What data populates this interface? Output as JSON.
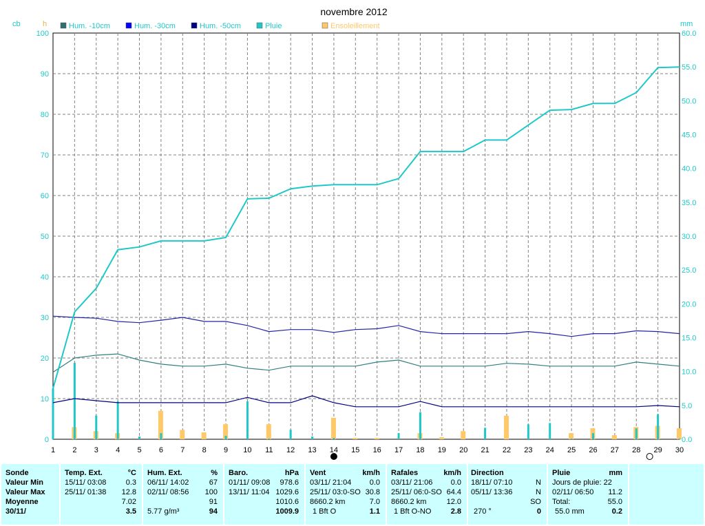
{
  "chart_data": {
    "type": "line",
    "title": "novembre 2012",
    "left_units": [
      "cb",
      "h"
    ],
    "right_unit": "mm",
    "y_left_ticks": [
      0,
      10,
      20,
      30,
      40,
      50,
      60,
      70,
      80,
      90,
      100
    ],
    "y_right_ticks": [
      "0.0",
      "5.0",
      "10.0",
      "15.0",
      "20.0",
      "25.0",
      "30.0",
      "35.0",
      "40.0",
      "45.0",
      "50.0",
      "55.0",
      "60.0"
    ],
    "x": [
      1,
      2,
      3,
      4,
      5,
      6,
      7,
      8,
      9,
      10,
      11,
      12,
      13,
      14,
      15,
      16,
      17,
      18,
      19,
      20,
      21,
      22,
      23,
      24,
      25,
      26,
      27,
      28,
      29,
      30
    ],
    "ylim_left": [
      0,
      100
    ],
    "ylim_right": [
      0,
      60
    ],
    "grid": true,
    "legend": [
      {
        "name": "Hum. -10cm",
        "color": "#2f6f6f"
      },
      {
        "name": "Hum. -30cm",
        "color": "#0000ff"
      },
      {
        "name": "Hum. -50cm",
        "color": "#00007f"
      },
      {
        "name": "Pluie",
        "color": "#1ec8c8"
      },
      {
        "name": "Ensoleillement",
        "color": "#ffc868"
      }
    ],
    "series": [
      {
        "name": "Hum. -10cm",
        "axis": "left",
        "color": "#2f7f7f",
        "values": [
          16.5,
          20,
          20.7,
          21,
          19.5,
          18.5,
          18,
          18,
          18.5,
          17.5,
          17,
          18,
          18,
          18,
          18,
          19,
          19.5,
          18,
          18,
          18,
          18,
          18.7,
          18.5,
          18,
          18,
          18,
          18,
          19,
          18.5,
          18
        ]
      },
      {
        "name": "Hum. -30cm",
        "axis": "left",
        "color": "#2323a8",
        "values": [
          30.3,
          30,
          29.8,
          29,
          28.7,
          29.3,
          30,
          29,
          29,
          28,
          26.5,
          27,
          27,
          26.3,
          27,
          27.2,
          28,
          26.5,
          26,
          26,
          26,
          26,
          26.5,
          26,
          25.3,
          26,
          26,
          26.7,
          26.5,
          26
        ]
      },
      {
        "name": "Hum. -50cm",
        "axis": "left",
        "color": "#00007f",
        "values": [
          9,
          10,
          9.5,
          9,
          9,
          9,
          9,
          9,
          9,
          10.3,
          9,
          9,
          10.7,
          9,
          8,
          8,
          8,
          9.3,
          8,
          8,
          8,
          8,
          8,
          8,
          8,
          8,
          8,
          8,
          8.3,
          8
        ]
      },
      {
        "name": "Pluie",
        "axis": "right",
        "kind": "cumulative",
        "color": "#1ec8c8",
        "values": [
          7.5,
          18.8,
          22.3,
          28,
          28.4,
          29.3,
          29.3,
          29.3,
          29.8,
          35.5,
          35.6,
          37,
          37.4,
          37.6,
          37.6,
          37.6,
          38.5,
          42.5,
          42.5,
          42.5,
          44.2,
          44.2,
          46.4,
          48.6,
          48.7,
          49.6,
          49.6,
          51.2,
          54.9,
          55
        ]
      },
      {
        "name": "Pluie (jour)",
        "axis": "right",
        "kind": "bars",
        "color": "#1ec8c8",
        "values": [
          7.5,
          11.3,
          3.5,
          5.6,
          0.4,
          0.9,
          0,
          0,
          0.5,
          5.6,
          0.1,
          1.4,
          0.4,
          0.2,
          0,
          0,
          0.9,
          4,
          0,
          0,
          1.7,
          0,
          2.2,
          2.4,
          0.1,
          0.9,
          0,
          1.6,
          3.7,
          0.1
        ]
      },
      {
        "name": "Ensoleillement",
        "axis": "left",
        "kind": "bars",
        "color": "#ffc868",
        "values": [
          0,
          3,
          2,
          1.5,
          0,
          7,
          2.3,
          1.7,
          3.7,
          0,
          3.7,
          0,
          0,
          5.3,
          0.3,
          0.3,
          0,
          1.5,
          0.5,
          2,
          0,
          5.8,
          0,
          0,
          1.5,
          2.7,
          1,
          3,
          3.3,
          2.7
        ]
      }
    ],
    "markers": {
      "new_moon_day": 14,
      "full_moon_day": 29
    }
  },
  "panel": {
    "sonde": {
      "title": "Sonde",
      "min": "Valeur Min",
      "max": "Valeur Max",
      "moy": "Moyenne",
      "date": "30/11/"
    },
    "temp": {
      "title": "Temp. Ext.",
      "unit": "°C",
      "min_date": "15/11/  03:08",
      "min_val": "0.3",
      "max_date": "25/11/  01:38",
      "max_val": "12.8",
      "moy": "7.02",
      "cur": "3.5"
    },
    "hum": {
      "title": "Hum. Ext.",
      "unit": "%",
      "min_date": "06/11/  14:02",
      "min_val": "67",
      "max_date": "02/11/  08:56",
      "max_val": "100",
      "moy": "91",
      "abs": "5.77 g/m³",
      "cur": "94"
    },
    "baro": {
      "title": "Baro.",
      "unit": "hPa",
      "min_date": "01/11/  09:08",
      "min_val": "978.6",
      "max_date": "13/11/  11:04",
      "max_val": "1029.6",
      "moy": "1010.6",
      "cur": "1009.9"
    },
    "vent": {
      "title": "Vent",
      "unit": "km/h",
      "min_date": "03/11/  21:04",
      "min_val": "0.0",
      "max_date": "25/11/  03:0-SO",
      "max_val": "30.8",
      "dist": "8660.2 km",
      "moy": "7.0",
      "bft": "1 Bft O",
      "cur": "1.1"
    },
    "rafales": {
      "title": "Rafales",
      "unit": "km/h",
      "min_date": "03/11/  21:06",
      "min_val": "0.0",
      "max_date": "25/11/  06:0-SO",
      "max_val": "64.4",
      "dist": "8660.2 km",
      "moy": "12.0",
      "bft": "1 Bft O-NO",
      "cur": "2.8"
    },
    "direction": {
      "title": "Direction",
      "min_date": "18/11/  07:10",
      "min_val": "N",
      "max_date": "05/11/  13:36",
      "max_val": "N",
      "moy": "SO",
      "deg": "270 °",
      "cur": "0"
    },
    "pluie": {
      "title": "Pluie",
      "unit": "mm",
      "jours": "Jours de pluie: 22",
      "max_date": "02/11/  06:50",
      "max_val": "11.2",
      "total_lbl": "Total:",
      "total_val": "55.0",
      "cum": "55.0 mm",
      "cur": "0.2"
    }
  }
}
